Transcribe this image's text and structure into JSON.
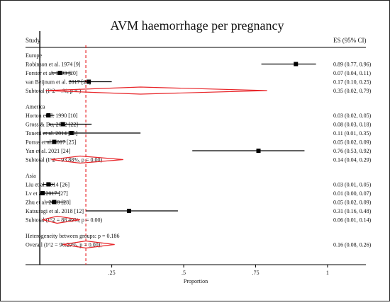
{
  "chart_data": {
    "type": "forest",
    "title": "AVM haemorrhage per pregnancy",
    "study_header": "Study",
    "es_header": "ES (95% CI)",
    "xlabel": "Proportion",
    "xlim": [
      -0.03,
      1.02
    ],
    "xticks": [
      ".25",
      ".5",
      ".75",
      "1"
    ],
    "xtick_values": [
      0.25,
      0.5,
      0.75,
      1
    ],
    "overall_line": 0.16,
    "groups": [
      {
        "name": "Europe",
        "studies": [
          {
            "label": "Robinson et al. 1974 [9]",
            "es": 0.89,
            "lo": 0.77,
            "hi": 0.96,
            "text": "0.89 (0.77, 0.96)"
          },
          {
            "label": "Forster et al. 1993 [20]",
            "es": 0.07,
            "lo": 0.04,
            "hi": 0.11,
            "text": "0.07 (0.04, 0.11)"
          },
          {
            "label": "van Beijnum et al. 2017 [21]",
            "es": 0.17,
            "lo": 0.1,
            "hi": 0.25,
            "text": "0.17 (0.10, 0.25)"
          }
        ],
        "subtotal": {
          "label": "Subtotal  (I^2 = .%, p = )",
          "es": 0.35,
          "lo": 0.02,
          "hi": 0.79,
          "text": "0.35 (0.02, 0.79)"
        }
      },
      {
        "name": "America",
        "studies": [
          {
            "label": "Horton et al. 1990 [10]",
            "es": 0.03,
            "lo": 0.02,
            "hi": 0.05,
            "text": "0.03 (0.02, 0.05)"
          },
          {
            "label": "Gross & Du, 2012 [22]",
            "es": 0.08,
            "lo": 0.03,
            "hi": 0.18,
            "text": "0.08 (0.03, 0.18)"
          },
          {
            "label": "Tonetti et al. 2014 [23]",
            "es": 0.11,
            "lo": 0.01,
            "hi": 0.35,
            "text": "0.11 (0.01, 0.35)"
          },
          {
            "label": "Porras et al. 2017 [25]",
            "es": 0.05,
            "lo": 0.02,
            "hi": 0.09,
            "text": "0.05 (0.02, 0.09)"
          },
          {
            "label": "Yan et al. 2021 [24]",
            "es": 0.76,
            "lo": 0.53,
            "hi": 0.92,
            "text": "0.76 (0.53, 0.92)"
          }
        ],
        "subtotal": {
          "label": "Subtotal  (I^2 = 93.88%, p = 0.00)",
          "es": 0.14,
          "lo": 0.04,
          "hi": 0.29,
          "text": "0.14 (0.04, 0.29)"
        }
      },
      {
        "name": "Asia",
        "studies": [
          {
            "label": "Liu et al. 2014 [26]",
            "es": 0.03,
            "lo": 0.01,
            "hi": 0.05,
            "text": "0.03 (0.01, 0.05)"
          },
          {
            "label": "Lv et al. 2017 [27]",
            "es": 0.01,
            "lo": 0.0,
            "hi": 0.07,
            "text": "0.01 (0.00, 0.07)"
          },
          {
            "label": "Zhu et al. 2018 [28]",
            "es": 0.05,
            "lo": 0.02,
            "hi": 0.09,
            "text": "0.05 (0.02, 0.09)"
          },
          {
            "label": "Katsuragi et al. 2018 [12]",
            "es": 0.31,
            "lo": 0.16,
            "hi": 0.48,
            "text": "0.31 (0.16, 0.48)"
          }
        ],
        "subtotal": {
          "label": "Subtotal  (I^2 = 88.49%, p = 0.00)",
          "es": 0.06,
          "lo": 0.01,
          "hi": 0.14,
          "text": "0.06 (0.01, 0.14)"
        }
      }
    ],
    "heterogeneity": "Heterogeneity between groups: p = 0.186",
    "overall": {
      "label": "Overall  (I^2 = 96.29%, p = 0.00);",
      "es": 0.16,
      "lo": 0.08,
      "hi": 0.26,
      "text": "0.16 (0.08, 0.26)"
    },
    "colors": {
      "diamond": "#e8262a",
      "ref_line": "#e8262a",
      "marker": "#000000"
    }
  }
}
